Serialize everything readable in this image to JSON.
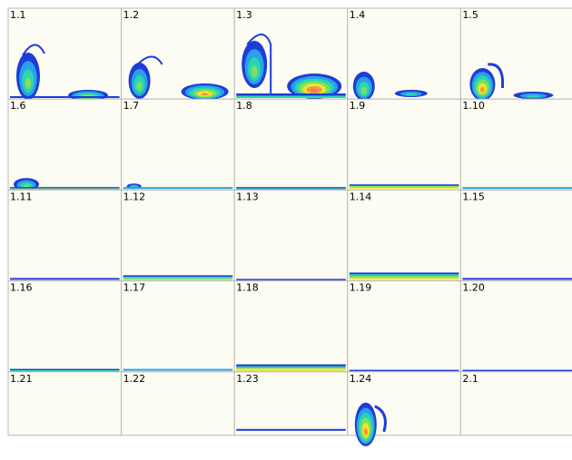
{
  "panels": [
    {
      "label": "1.1"
    },
    {
      "label": "1.2"
    },
    {
      "label": "1.3"
    },
    {
      "label": "1.4"
    },
    {
      "label": "1.5"
    },
    {
      "label": "1.6"
    },
    {
      "label": "1.7"
    },
    {
      "label": "1.8"
    },
    {
      "label": "1.9"
    },
    {
      "label": "1.10"
    },
    {
      "label": "1.11"
    },
    {
      "label": "1.12"
    },
    {
      "label": "1.13"
    },
    {
      "label": "1.14"
    },
    {
      "label": "1.15"
    },
    {
      "label": "1.16"
    },
    {
      "label": "1.17"
    },
    {
      "label": "1.18"
    },
    {
      "label": "1.19"
    },
    {
      "label": "1.20"
    },
    {
      "label": "1.21"
    },
    {
      "label": "1.22"
    },
    {
      "label": "1.23"
    },
    {
      "label": "1.24"
    },
    {
      "label": "2.1"
    }
  ]
}
